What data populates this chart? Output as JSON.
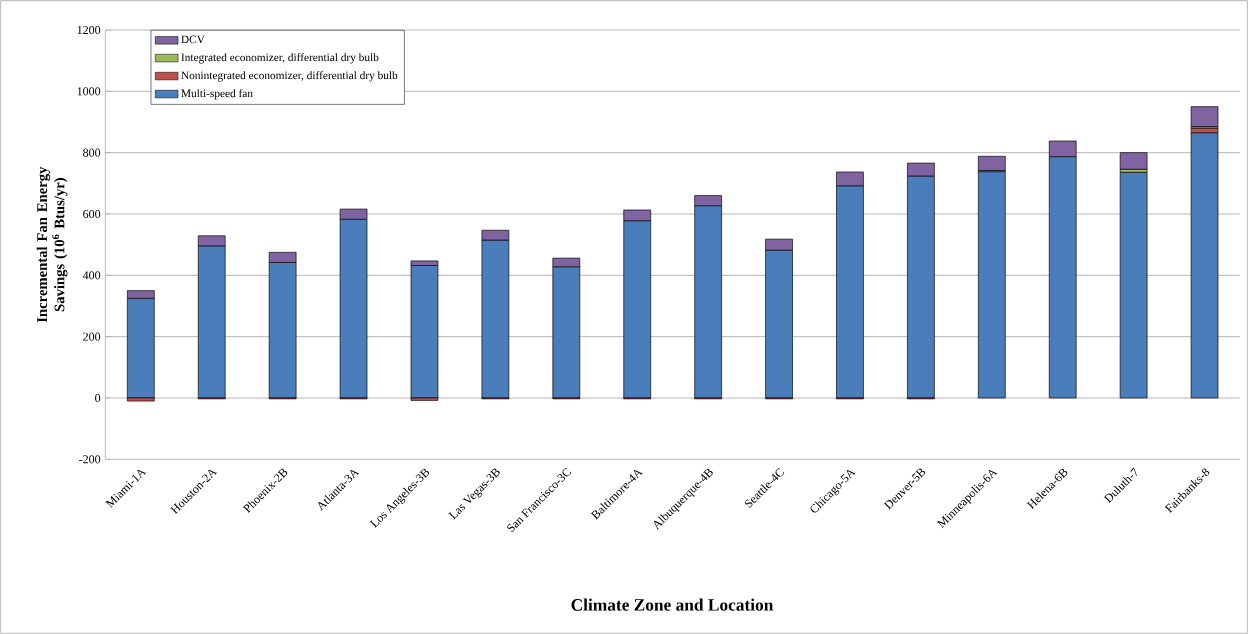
{
  "chart_data": {
    "type": "bar",
    "stacked": true,
    "xlabel": "Climate Zone and Location",
    "ylabel": "Incremental Fan Energy Savings (10$^{6}$ Btus/yr)",
    "categories": [
      "Miami-1A",
      "Houston-2A",
      "Phoenix-2B",
      "Atlanta-3A",
      "Los Angeles-3B",
      "Las Vegas-3B",
      "San Francisco-3C",
      "Baltimore-4A",
      "Albuquerque-4B",
      "Seattle-4C",
      "Chicago-5A",
      "Denver-5B",
      "Minneapolis-6A",
      "Helena-6B",
      "Duluth-7",
      "Fairbanks-8"
    ],
    "series": [
      {
        "name": "Multi-speed fan",
        "color": "#4a7ebb",
        "values": [
          325,
          496,
          442,
          583,
          432,
          515,
          428,
          578,
          627,
          482,
          692,
          724,
          738,
          787,
          736,
          865
        ]
      },
      {
        "name": "Nonintegrated economizer, differential dry bulb",
        "color": "#c0504d",
        "values": [
          -10,
          -3,
          -3,
          -3,
          -8,
          -3,
          -3,
          -3,
          -3,
          -3,
          -3,
          -3,
          null,
          null,
          null,
          15
        ]
      },
      {
        "name": "Integrated economizer, differential dry bulb",
        "color": "#9bbb59",
        "values": [
          null,
          null,
          null,
          null,
          null,
          null,
          null,
          null,
          null,
          null,
          null,
          null,
          4,
          null,
          10,
          5
        ]
      },
      {
        "name": "DCV",
        "color": "#8064a2",
        "values": [
          25,
          33,
          33,
          33,
          15,
          32,
          28,
          35,
          33,
          36,
          45,
          42,
          46,
          51,
          54,
          65
        ]
      }
    ],
    "ylim": [
      -200,
      1200
    ],
    "yticks": [
      -200,
      0,
      200,
      400,
      600,
      800,
      1000,
      1200
    ],
    "grid": "y",
    "legend": "top left"
  }
}
